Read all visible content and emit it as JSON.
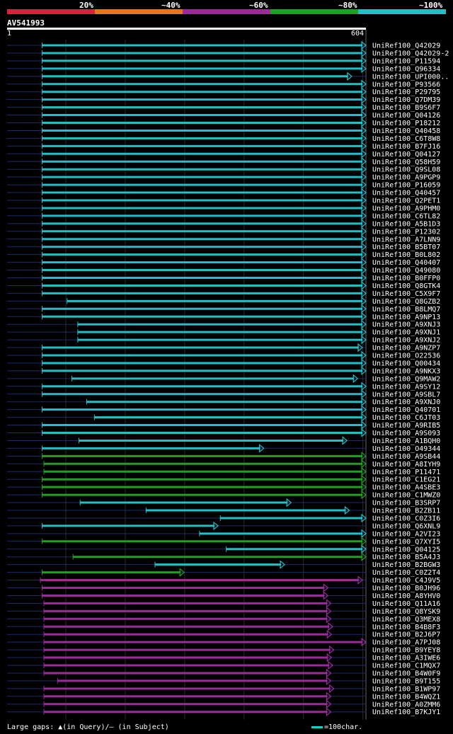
{
  "legend": {
    "labels": [
      "20%",
      "~40%",
      "~60%",
      "~80%",
      "~100%"
    ],
    "colors": [
      "#e0203a",
      "#e8761e",
      "#9b2a9b",
      "#20a020",
      "#20c0c8"
    ]
  },
  "chart_data": {
    "type": "bar",
    "query": "AV541993",
    "query_start": "1",
    "query_end": "604",
    "xlim": [
      1,
      604
    ],
    "hits": [
      {
        "name": "UniRef100_Q42029",
        "start": 60,
        "end": 604,
        "cls": 4
      },
      {
        "name": "UniRef100_Q42029-2",
        "start": 60,
        "end": 604,
        "cls": 4
      },
      {
        "name": "UniRef100_P11594",
        "start": 60,
        "end": 604,
        "cls": 4
      },
      {
        "name": "UniRef100_Q96334",
        "start": 60,
        "end": 604,
        "cls": 4
      },
      {
        "name": "UniRef100_UPI000..",
        "start": 60,
        "end": 580,
        "cls": 4
      },
      {
        "name": "UniRef100_P93566",
        "start": 60,
        "end": 604,
        "cls": 4
      },
      {
        "name": "UniRef100_P29795",
        "start": 60,
        "end": 604,
        "cls": 4
      },
      {
        "name": "UniRef100_Q7DM39",
        "start": 60,
        "end": 604,
        "cls": 4
      },
      {
        "name": "UniRef100_B9S6F7",
        "start": 60,
        "end": 604,
        "cls": 4
      },
      {
        "name": "UniRef100_Q04126",
        "start": 60,
        "end": 604,
        "cls": 4
      },
      {
        "name": "UniRef100_P18212",
        "start": 60,
        "end": 604,
        "cls": 4
      },
      {
        "name": "UniRef100_Q40458",
        "start": 60,
        "end": 604,
        "cls": 4
      },
      {
        "name": "UniRef100_C6T8W8",
        "start": 60,
        "end": 604,
        "cls": 4
      },
      {
        "name": "UniRef100_B7FJ16",
        "start": 60,
        "end": 604,
        "cls": 4
      },
      {
        "name": "UniRef100_Q04127",
        "start": 60,
        "end": 604,
        "cls": 4
      },
      {
        "name": "UniRef100_Q58H59",
        "start": 60,
        "end": 604,
        "cls": 4
      },
      {
        "name": "UniRef100_Q9SL08",
        "start": 60,
        "end": 604,
        "cls": 4
      },
      {
        "name": "UniRef100_A9PGP9",
        "start": 60,
        "end": 604,
        "cls": 4
      },
      {
        "name": "UniRef100_P16059",
        "start": 60,
        "end": 604,
        "cls": 4
      },
      {
        "name": "UniRef100_Q40457",
        "start": 60,
        "end": 604,
        "cls": 4
      },
      {
        "name": "UniRef100_Q2PET1",
        "start": 60,
        "end": 604,
        "cls": 4
      },
      {
        "name": "UniRef100_A9PHM0",
        "start": 60,
        "end": 604,
        "cls": 4
      },
      {
        "name": "UniRef100_C6TL82",
        "start": 60,
        "end": 604,
        "cls": 4
      },
      {
        "name": "UniRef100_A5B1D3",
        "start": 60,
        "end": 604,
        "cls": 4
      },
      {
        "name": "UniRef100_P12302",
        "start": 60,
        "end": 604,
        "cls": 4
      },
      {
        "name": "UniRef100_A7LNN9",
        "start": 60,
        "end": 604,
        "cls": 4
      },
      {
        "name": "UniRef100_B5BT07",
        "start": 60,
        "end": 604,
        "cls": 4
      },
      {
        "name": "UniRef100_B0L802",
        "start": 60,
        "end": 604,
        "cls": 4
      },
      {
        "name": "UniRef100_Q40407",
        "start": 60,
        "end": 604,
        "cls": 4
      },
      {
        "name": "UniRef100_Q49080",
        "start": 60,
        "end": 604,
        "cls": 4
      },
      {
        "name": "UniRef100_B0FFP0",
        "start": 60,
        "end": 604,
        "cls": 4
      },
      {
        "name": "UniRef100_Q8GTK4",
        "start": 60,
        "end": 604,
        "cls": 4
      },
      {
        "name": "UniRef100_C5X9F7",
        "start": 60,
        "end": 604,
        "cls": 4
      },
      {
        "name": "UniRef100_Q8GZB2",
        "start": 102,
        "end": 604,
        "cls": 4
      },
      {
        "name": "UniRef100_B8LMQ7",
        "start": 60,
        "end": 604,
        "cls": 4
      },
      {
        "name": "UniRef100_A9NP13",
        "start": 60,
        "end": 604,
        "cls": 4
      },
      {
        "name": "UniRef100_A9XNJ3",
        "start": 120,
        "end": 604,
        "cls": 4
      },
      {
        "name": "UniRef100_A9XNJ1",
        "start": 120,
        "end": 604,
        "cls": 4
      },
      {
        "name": "UniRef100_A9XNJ2",
        "start": 120,
        "end": 604,
        "cls": 4
      },
      {
        "name": "UniRef100_A9NZP7",
        "start": 60,
        "end": 598,
        "cls": 4
      },
      {
        "name": "UniRef100_O22536",
        "start": 60,
        "end": 604,
        "cls": 4
      },
      {
        "name": "UniRef100_Q00434",
        "start": 60,
        "end": 604,
        "cls": 4
      },
      {
        "name": "UniRef100_A9NKX3",
        "start": 60,
        "end": 604,
        "cls": 4
      },
      {
        "name": "UniRef100_Q9MAW2",
        "start": 110,
        "end": 590,
        "cls": 4
      },
      {
        "name": "UniRef100_A9SY12",
        "start": 60,
        "end": 604,
        "cls": 4
      },
      {
        "name": "UniRef100_A9SBL7",
        "start": 60,
        "end": 604,
        "cls": 4
      },
      {
        "name": "UniRef100_A9XNJ0",
        "start": 135,
        "end": 604,
        "cls": 4
      },
      {
        "name": "UniRef100_Q40701",
        "start": 60,
        "end": 604,
        "cls": 4
      },
      {
        "name": "UniRef100_C6JT03",
        "start": 148,
        "end": 604,
        "cls": 4
      },
      {
        "name": "UniRef100_A9RIB5",
        "start": 60,
        "end": 604,
        "cls": 4
      },
      {
        "name": "UniRef100_A9S093",
        "start": 60,
        "end": 604,
        "cls": 4
      },
      {
        "name": "UniRef100_A1BQH0",
        "start": 122,
        "end": 572,
        "cls": 4
      },
      {
        "name": "UniRef100_O49344",
        "start": 60,
        "end": 432,
        "cls": 4
      },
      {
        "name": "UniRef100_A9SB44",
        "start": 60,
        "end": 604,
        "cls": 3
      },
      {
        "name": "UniRef100_A8IYH9",
        "start": 63,
        "end": 604,
        "cls": 3
      },
      {
        "name": "UniRef100_P11471",
        "start": 63,
        "end": 604,
        "cls": 3
      },
      {
        "name": "UniRef100_C1EG21",
        "start": 60,
        "end": 604,
        "cls": 3
      },
      {
        "name": "UniRef100_A4SBE3",
        "start": 60,
        "end": 604,
        "cls": 3
      },
      {
        "name": "UniRef100_C1MWZ0",
        "start": 60,
        "end": 604,
        "cls": 3
      },
      {
        "name": "UniRef100_B3SRP7",
        "start": 124,
        "end": 478,
        "cls": 4
      },
      {
        "name": "UniRef100_B2ZB11",
        "start": 235,
        "end": 576,
        "cls": 4
      },
      {
        "name": "UniRef100_C0Z3I6",
        "start": 360,
        "end": 604,
        "cls": 4
      },
      {
        "name": "UniRef100_Q6XNL9",
        "start": 60,
        "end": 355,
        "cls": 4
      },
      {
        "name": "UniRef100_A2VI23",
        "start": 325,
        "end": 604,
        "cls": 4
      },
      {
        "name": "UniRef100_Q7XYI5",
        "start": 60,
        "end": 604,
        "cls": 3
      },
      {
        "name": "UniRef100_Q04125",
        "start": 370,
        "end": 604,
        "cls": 4
      },
      {
        "name": "UniRef100_B5A4J3",
        "start": 112,
        "end": 604,
        "cls": 3
      },
      {
        "name": "UniRef100_B2BGW3",
        "start": 250,
        "end": 467,
        "cls": 4
      },
      {
        "name": "UniRef100_C0Z2T4",
        "start": 60,
        "end": 298,
        "cls": 3
      },
      {
        "name": "UniRef100_C4J9V5",
        "start": 57,
        "end": 598,
        "cls": 2
      },
      {
        "name": "UniRef100_B0JH96",
        "start": 60,
        "end": 540,
        "cls": 2
      },
      {
        "name": "UniRef100_A8YHV0",
        "start": 60,
        "end": 540,
        "cls": 2
      },
      {
        "name": "UniRef100_Q11A16",
        "start": 63,
        "end": 545,
        "cls": 2
      },
      {
        "name": "UniRef100_Q8YSK9",
        "start": 63,
        "end": 545,
        "cls": 2
      },
      {
        "name": "UniRef100_Q3MEX8",
        "start": 63,
        "end": 545,
        "cls": 2
      },
      {
        "name": "UniRef100_B4B8F3",
        "start": 63,
        "end": 548,
        "cls": 2
      },
      {
        "name": "UniRef100_B2J6P7",
        "start": 63,
        "end": 546,
        "cls": 2
      },
      {
        "name": "UniRef100_A7PJ08",
        "start": 63,
        "end": 604,
        "cls": 2
      },
      {
        "name": "UniRef100_B9YEY8",
        "start": 63,
        "end": 550,
        "cls": 2
      },
      {
        "name": "UniRef100_A3IWE6",
        "start": 63,
        "end": 546,
        "cls": 2
      },
      {
        "name": "UniRef100_C1MQX7",
        "start": 63,
        "end": 548,
        "cls": 2
      },
      {
        "name": "UniRef100_B4W0F9",
        "start": 63,
        "end": 545,
        "cls": 2
      },
      {
        "name": "UniRef100_B9T155",
        "start": 86,
        "end": 545,
        "cls": 2
      },
      {
        "name": "UniRef100_B1WP97",
        "start": 63,
        "end": 550,
        "cls": 2
      },
      {
        "name": "UniRef100_B4WQZ1",
        "start": 63,
        "end": 545,
        "cls": 2
      },
      {
        "name": "UniRef100_A0ZMM6",
        "start": 63,
        "end": 545,
        "cls": 2
      },
      {
        "name": "UniRef100_B7KJY1",
        "start": 63,
        "end": 545,
        "cls": 2
      }
    ]
  },
  "footer": {
    "gaps_text": "Large gaps: ▲(in Query)/— (in Subject)",
    "scale_text": "=100char."
  }
}
